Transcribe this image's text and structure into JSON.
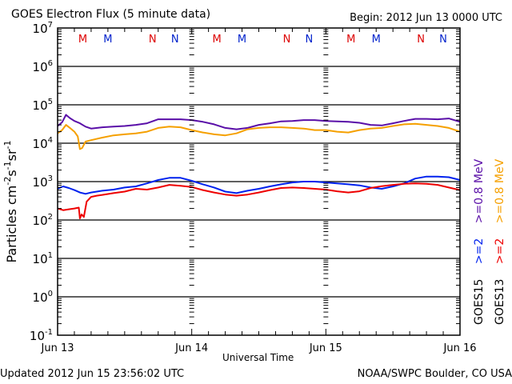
{
  "header": {
    "title": "GOES Electron Flux (5 minute data)",
    "begin": "Begin: 2012 Jun 13 0000 UTC"
  },
  "footer": {
    "updated": "Updated 2012 Jun 15 23:56:02 UTC",
    "credit": "NOAA/SWPC Boulder, CO USA"
  },
  "chart_data": {
    "type": "line",
    "title": "GOES Electron Flux (5 minute data)",
    "xlabel": "Universal Time",
    "ylabel": "Particles cm-2s-1sr-1",
    "yscale": "log",
    "ylim": [
      0.1,
      10000000
    ],
    "xlim_hours": [
      0,
      72
    ],
    "x_tick_labels": [
      "Jun 13",
      "Jun 14",
      "Jun 15",
      "Jun 16"
    ],
    "y_tick_labels": [
      {
        "base": "10",
        "exp": "7"
      },
      {
        "base": "10",
        "exp": "6"
      },
      {
        "base": "10",
        "exp": "5"
      },
      {
        "base": "10",
        "exp": "4"
      },
      {
        "base": "10",
        "exp": "3"
      },
      {
        "base": "10",
        "exp": "2"
      },
      {
        "base": "10",
        "exp": "1"
      },
      {
        "base": "10",
        "exp": "0"
      },
      {
        "base": "10",
        "exp": "-1"
      }
    ],
    "threshold": {
      "value": 1000,
      "style": "dashed"
    },
    "grid": "horizontal decade lines",
    "legend_position": "right (vertical)",
    "legend": [
      {
        "label": "GOES15",
        "column": 1
      },
      {
        "label": ">=2",
        "column": 1,
        "color": "#0022ee"
      },
      {
        "label": ">=0.8 MeV",
        "column": 1,
        "color": "#5a0fa8"
      },
      {
        "label": "GOES13",
        "column": 2
      },
      {
        "label": ">=2",
        "column": 2,
        "color": "#ee0000"
      },
      {
        "label": ">=0.8 MeV",
        "column": 2,
        "color": "#f5a000"
      }
    ],
    "markers": [
      {
        "hour": 4.5,
        "label": "M",
        "color": "#dd0000"
      },
      {
        "hour": 9.0,
        "label": "M",
        "color": "#0022cc"
      },
      {
        "hour": 17.0,
        "label": "N",
        "color": "#dd0000"
      },
      {
        "hour": 21.0,
        "label": "N",
        "color": "#0022cc"
      },
      {
        "hour": 28.5,
        "label": "M",
        "color": "#dd0000"
      },
      {
        "hour": 33.0,
        "label": "M",
        "color": "#0022cc"
      },
      {
        "hour": 41.0,
        "label": "N",
        "color": "#dd0000"
      },
      {
        "hour": 45.0,
        "label": "N",
        "color": "#0022cc"
      },
      {
        "hour": 52.5,
        "label": "M",
        "color": "#dd0000"
      },
      {
        "hour": 57.0,
        "label": "M",
        "color": "#0022cc"
      },
      {
        "hour": 65.0,
        "label": "N",
        "color": "#dd0000"
      },
      {
        "hour": 69.0,
        "label": "N",
        "color": "#0022cc"
      }
    ],
    "series": [
      {
        "name": "GOES15 >=0.8 MeV",
        "color": "#5a0fa8",
        "x": [
          0,
          0.8,
          1.5,
          2.2,
          3,
          4,
          5,
          6,
          8,
          10,
          12,
          14,
          16,
          18,
          20,
          22,
          24,
          26,
          28,
          30,
          32,
          34,
          36,
          38,
          40,
          42,
          44,
          46,
          48,
          50,
          52,
          54,
          56,
          58,
          60,
          62,
          64,
          66,
          68,
          70,
          72
        ],
        "y": [
          28000,
          35000,
          55000,
          45000,
          38000,
          33000,
          27000,
          24000,
          26000,
          27000,
          28000,
          30000,
          33000,
          42000,
          42000,
          42000,
          40000,
          36000,
          31000,
          25000,
          23000,
          25000,
          30000,
          33000,
          37000,
          38000,
          40000,
          40000,
          38000,
          37000,
          36000,
          34000,
          30000,
          29000,
          33000,
          38000,
          43000,
          43000,
          42000,
          44000,
          36000
        ]
      },
      {
        "name": "GOES13 >=0.8 MeV",
        "color": "#f5a000",
        "x": [
          0,
          0.8,
          1.5,
          2.2,
          3,
          3.6,
          4.0,
          4.4,
          5,
          6,
          8,
          10,
          12,
          14,
          16,
          18,
          20,
          22,
          24,
          26,
          28,
          30,
          32,
          34,
          36,
          38,
          40,
          42,
          44,
          46,
          48,
          50,
          52,
          54,
          56,
          58,
          60,
          62,
          64,
          66,
          68,
          70,
          72
        ],
        "y": [
          18000,
          22000,
          30000,
          25000,
          20000,
          15000,
          7000,
          7500,
          11000,
          12000,
          14000,
          16000,
          17000,
          18000,
          20000,
          25000,
          27000,
          26000,
          22000,
          19000,
          17000,
          16000,
          18000,
          23000,
          25000,
          26000,
          26000,
          25000,
          24000,
          22000,
          22000,
          20000,
          19000,
          22000,
          24000,
          25000,
          28000,
          31000,
          32000,
          30000,
          28000,
          25000,
          20000
        ]
      },
      {
        "name": "GOES15 >=2 MeV",
        "color": "#0022ee",
        "x": [
          0,
          1,
          2,
          3,
          4,
          5,
          6,
          8,
          10,
          12,
          14,
          16,
          18,
          20,
          22,
          24,
          26,
          28,
          30,
          32,
          34,
          36,
          38,
          40,
          42,
          44,
          46,
          48,
          50,
          52,
          54,
          56,
          58,
          60,
          62,
          64,
          66,
          68,
          70,
          72
        ],
        "y": [
          650,
          750,
          680,
          600,
          520,
          480,
          520,
          580,
          620,
          700,
          750,
          900,
          1100,
          1250,
          1250,
          1050,
          850,
          700,
          550,
          500,
          580,
          650,
          750,
          850,
          950,
          1000,
          1000,
          950,
          900,
          850,
          800,
          700,
          650,
          750,
          900,
          1200,
          1350,
          1350,
          1300,
          1100
        ]
      },
      {
        "name": "GOES13 >=2 MeV",
        "color": "#ee0000",
        "x": [
          0,
          1,
          2,
          3,
          3.8,
          4.0,
          4.3,
          4.7,
          5.2,
          6,
          7,
          8,
          10,
          12,
          14,
          16,
          18,
          20,
          22,
          24,
          26,
          28,
          30,
          32,
          34,
          36,
          38,
          40,
          42,
          44,
          46,
          48,
          50,
          52,
          54,
          56,
          58,
          60,
          62,
          64,
          66,
          68,
          70,
          72
        ],
        "y": [
          200,
          180,
          190,
          200,
          210,
          110,
          140,
          120,
          300,
          400,
          430,
          450,
          500,
          550,
          650,
          620,
          700,
          820,
          780,
          720,
          600,
          520,
          460,
          430,
          460,
          520,
          600,
          680,
          700,
          680,
          650,
          620,
          560,
          520,
          560,
          680,
          760,
          820,
          880,
          900,
          880,
          820,
          700,
          600
        ]
      }
    ]
  }
}
